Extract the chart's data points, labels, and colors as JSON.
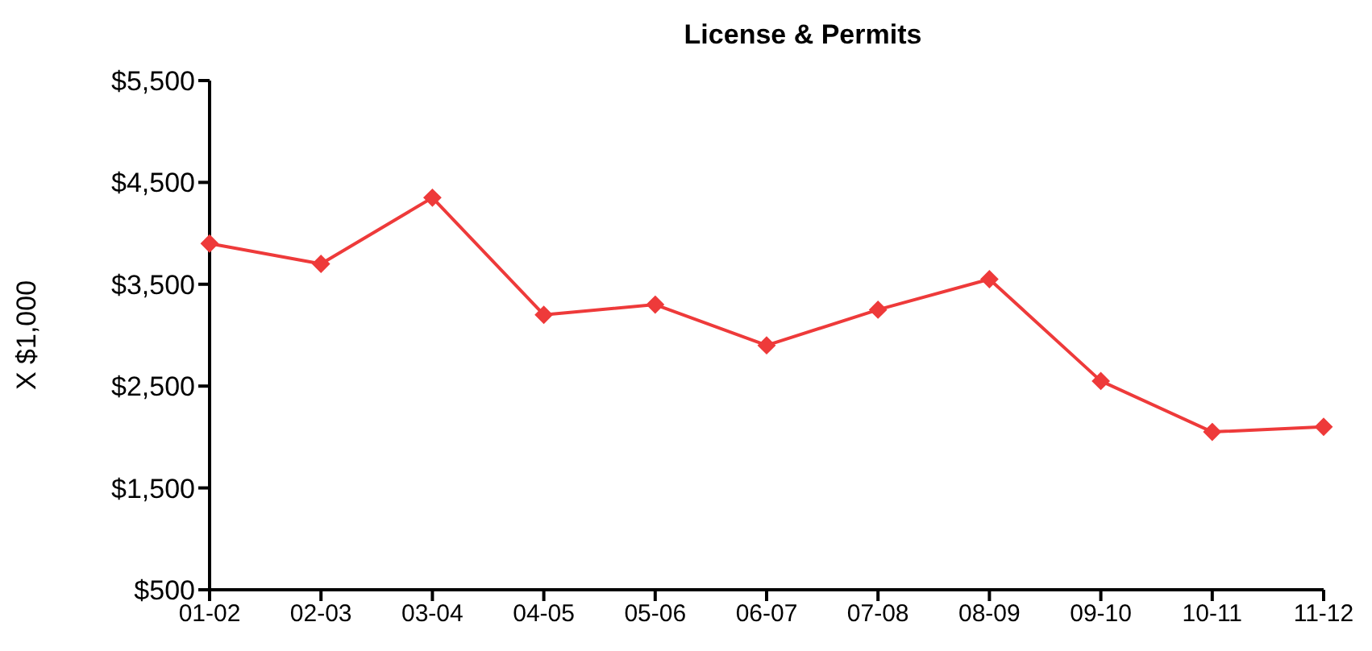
{
  "chart_data": {
    "type": "line",
    "title": "License & Permits",
    "ylabel": "X $1,000",
    "categories": [
      "01-02",
      "02-03",
      "03-04",
      "04-05",
      "05-06",
      "06-07",
      "07-08",
      "08-09",
      "09-10",
      "10-11",
      "11-12"
    ],
    "series": [
      {
        "color": "#ee3a3a",
        "values": [
          3900,
          3700,
          4350,
          3200,
          3300,
          2900,
          3250,
          3550,
          2550,
          2050,
          2100
        ]
      }
    ],
    "ylim": [
      500,
      5500
    ],
    "yticks": [
      {
        "value": 500,
        "label": "$500"
      },
      {
        "value": 1500,
        "label": "$1,500"
      },
      {
        "value": 2500,
        "label": "$2,500"
      },
      {
        "value": 3500,
        "label": "$3,500"
      },
      {
        "value": 4500,
        "label": "$4,500"
      },
      {
        "value": 5500,
        "label": "$5,500"
      }
    ],
    "marker": "diamond",
    "grid": false,
    "legend": false
  }
}
